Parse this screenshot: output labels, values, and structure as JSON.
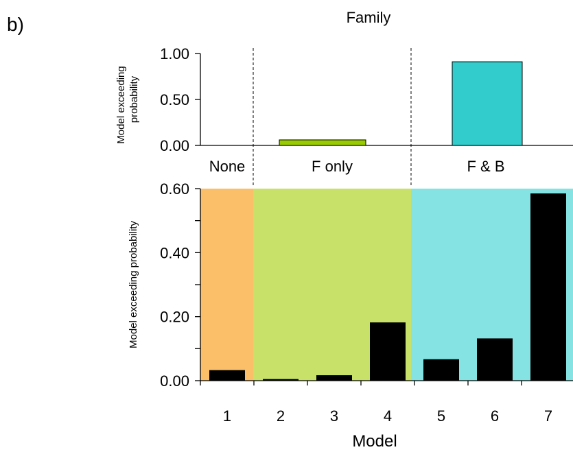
{
  "panel_label": "b)",
  "title": "Family",
  "colors": {
    "none": "#fbbf69",
    "f_only": "#c7e169",
    "f_and_b": "#85e3e3",
    "f_only_bar": "#99cc00",
    "f_and_b_bar": "#33cccc",
    "model_bar": "#000000"
  },
  "chart_data": [
    {
      "type": "bar",
      "categories": [
        "None",
        "F only",
        "F & B"
      ],
      "values": [
        0.0,
        0.06,
        0.91
      ],
      "ylabel": [
        "Model exceeding",
        "probability"
      ],
      "ylim": [
        0,
        1
      ],
      "yticks": [
        "0.00",
        "0.50",
        "1.00"
      ],
      "ytick_values": [
        0,
        0.5,
        1
      ]
    },
    {
      "type": "bar",
      "categories": [
        "1",
        "2",
        "3",
        "4",
        "5",
        "6",
        "7"
      ],
      "values": [
        0.033,
        0.005,
        0.017,
        0.182,
        0.067,
        0.132,
        0.585
      ],
      "family_of_model": [
        "None",
        "F only",
        "F only",
        "F only",
        "F & B",
        "F & B",
        "F & B"
      ],
      "xlabel": "Model",
      "ylabel": "Model exceeding probability",
      "ylim": [
        0,
        0.6
      ],
      "yticks": [
        "0.00",
        "0.20",
        "0.40",
        "0.60"
      ],
      "ytick_values": [
        0,
        0.2,
        0.4,
        0.6
      ],
      "minor_ytick_values": [
        0.1,
        0.3,
        0.5
      ],
      "grid": false
    }
  ]
}
